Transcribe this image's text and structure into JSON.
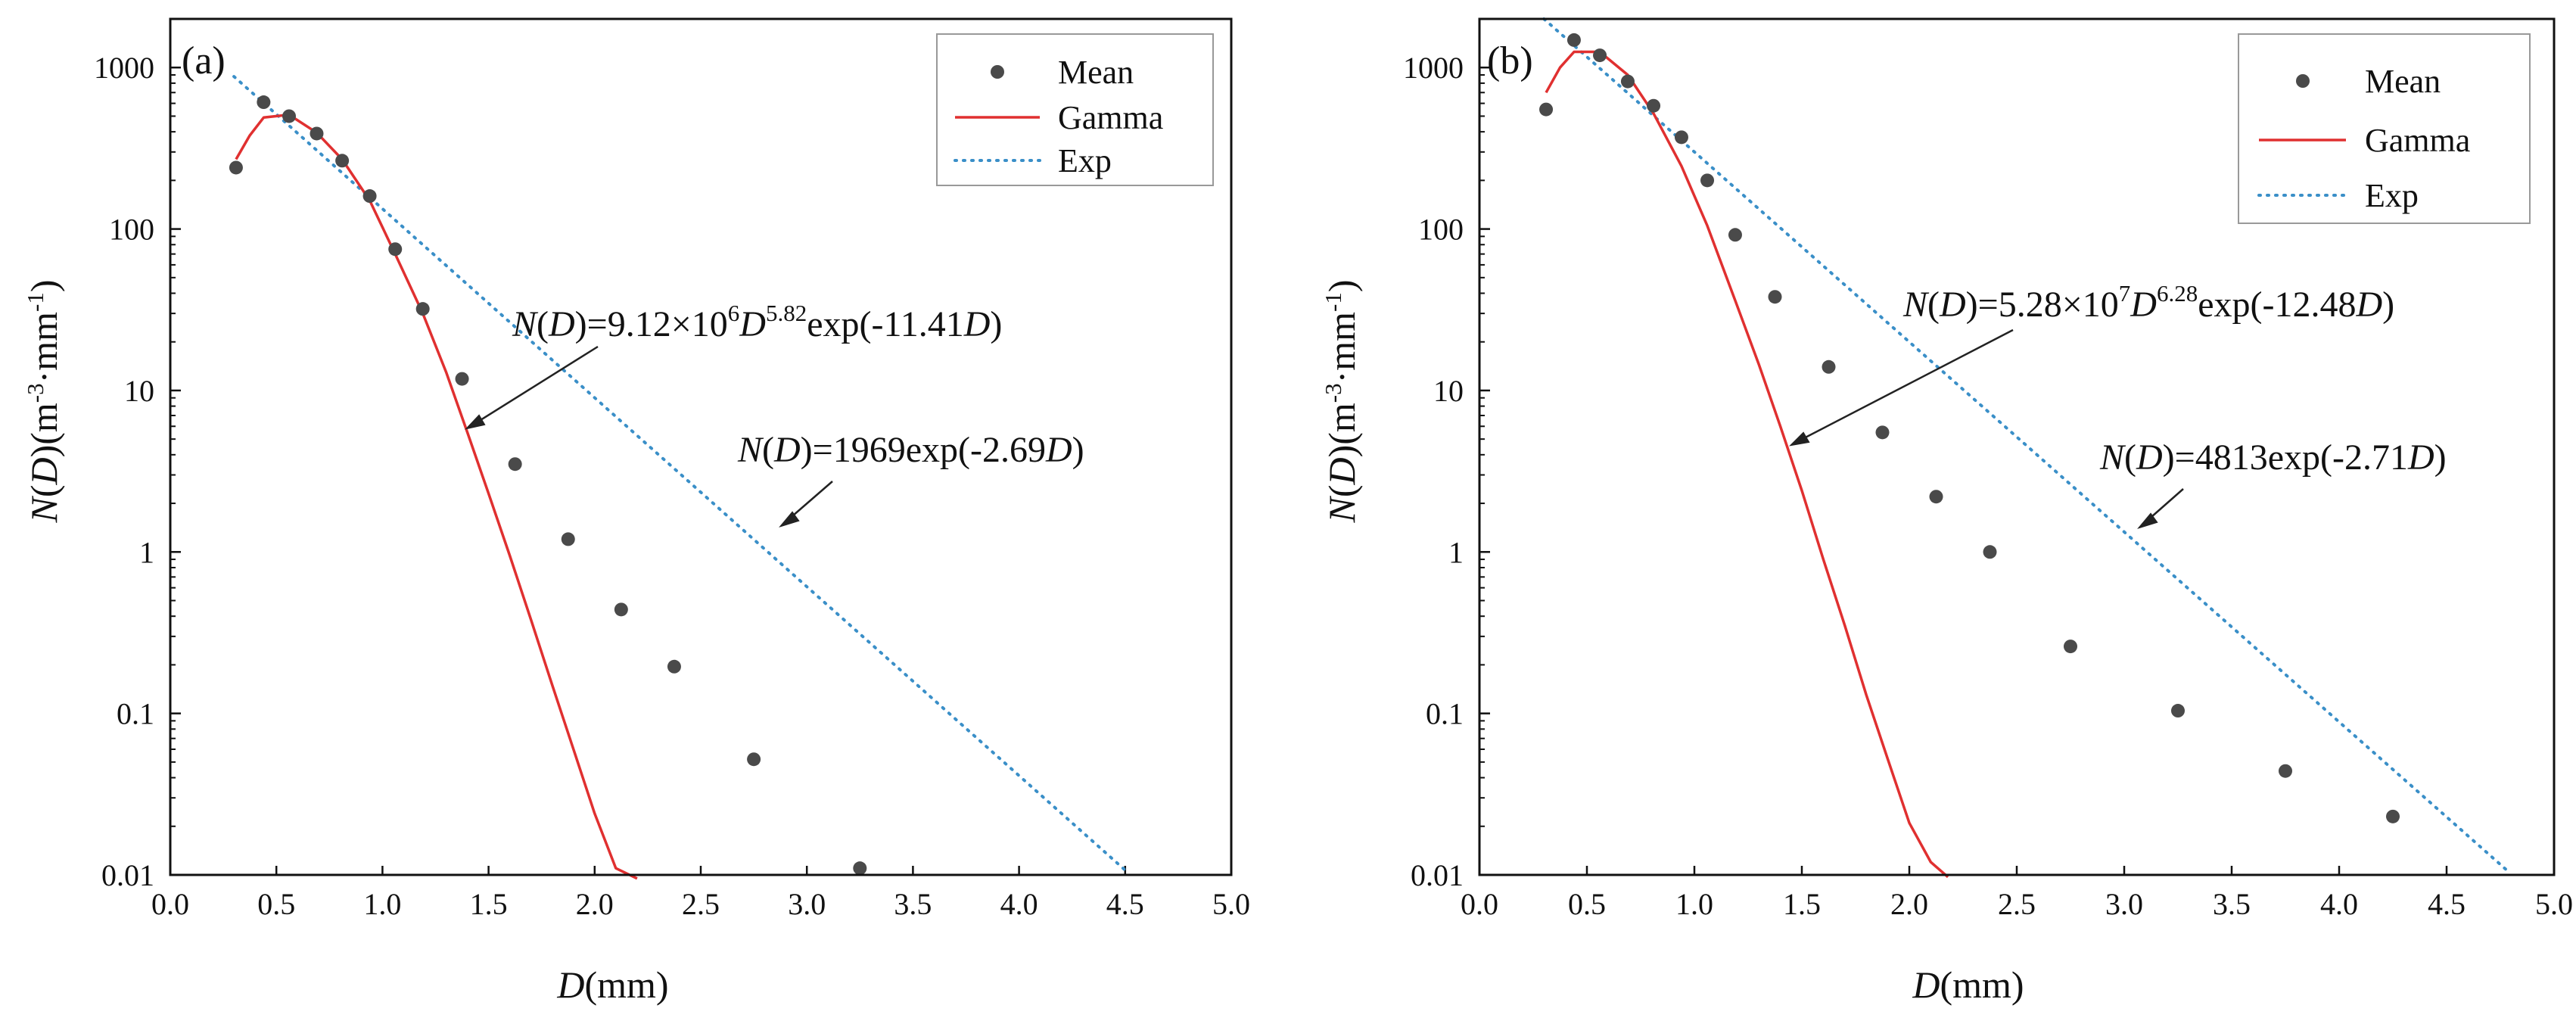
{
  "figure": {
    "styles": {
      "mean_color": "#4a4a4a",
      "gamma_color": "#e03030",
      "exp_color": "#3a8fc8",
      "axis_color": "#111111",
      "arrow_color": "#222222"
    }
  },
  "chart_data": [
    {
      "type": "scatter",
      "panel_label": "(a)",
      "xlabel": "D(mm)",
      "ylabel": "N(D)(m-3·mm-1)",
      "x_scale": "linear",
      "y_scale": "log",
      "xlim": [
        0.0,
        5.0
      ],
      "ylim": [
        0.01,
        2000
      ],
      "x_ticks": [
        0.0,
        0.5,
        1.0,
        1.5,
        2.0,
        2.5,
        3.0,
        3.5,
        4.0,
        4.5,
        5.0
      ],
      "x_tick_labels": [
        "0.0",
        "0.5",
        "1.0",
        "1.5",
        "2.0",
        "2.5",
        "3.0",
        "3.5",
        "4.0",
        "4.5",
        "5.0"
      ],
      "y_ticks": [
        0.01,
        0.1,
        1,
        10,
        100,
        1000
      ],
      "y_tick_labels": [
        "0.01",
        "0.1",
        "1",
        "10",
        "100",
        "1000"
      ],
      "legend": {
        "position": "top-right",
        "entries": [
          "Mean",
          "Gamma",
          "Exp"
        ]
      },
      "series": [
        {
          "name": "Mean",
          "kind": "points",
          "x": [
            0.31,
            0.44,
            0.56,
            0.69,
            0.81,
            0.94,
            1.06,
            1.19,
            1.375,
            1.625,
            1.875,
            2.125,
            2.375,
            2.75,
            3.25
          ],
          "y": [
            240,
            610,
            500,
            390,
            265,
            160,
            75,
            32,
            11.8,
            3.5,
            1.2,
            0.44,
            0.195,
            0.052,
            0.011
          ]
        },
        {
          "name": "Gamma",
          "kind": "line",
          "x": [
            0.31,
            0.375,
            0.44,
            0.56,
            0.69,
            0.81,
            0.94,
            1.06,
            1.19,
            1.3,
            1.4,
            1.5,
            1.6,
            1.7,
            1.8,
            1.9,
            2.0,
            2.1,
            2.2
          ],
          "y": [
            270,
            380,
            490,
            510,
            395,
            270,
            150,
            70,
            30,
            13,
            5.5,
            2.3,
            0.95,
            0.38,
            0.15,
            0.06,
            0.024,
            0.011,
            0.0095
          ]
        },
        {
          "name": "Exp",
          "kind": "dotted-line",
          "x": [
            0.3,
            4.5
          ],
          "y": [
            880,
            0.0107
          ]
        }
      ],
      "annotations": [
        {
          "parts": [
            "N",
            "(",
            "D",
            ")=9.12×10",
            "6",
            "D",
            "5.82",
            "exp(-11.41",
            "D",
            ")"
          ],
          "x": 1.4,
          "y": 9
        },
        {
          "parts": [
            "N",
            "(",
            "D",
            ")=1969exp(-2.69",
            "D",
            ")"
          ],
          "x": 3.23,
          "y": 1.28
        }
      ]
    },
    {
      "type": "scatter",
      "panel_label": "(b)",
      "xlabel": "D(mm)",
      "ylabel": "N(D)(m-3·mm-1)",
      "x_scale": "linear",
      "y_scale": "log",
      "xlim": [
        0.0,
        5.0
      ],
      "ylim": [
        0.01,
        2000
      ],
      "x_ticks": [
        0.0,
        0.5,
        1.0,
        1.5,
        2.0,
        2.5,
        3.0,
        3.5,
        4.0,
        4.5,
        5.0
      ],
      "x_tick_labels": [
        "0.0",
        "0.5",
        "1.0",
        "1.5",
        "2.0",
        "2.5",
        "3.0",
        "3.5",
        "4.0",
        "4.5",
        "5.0"
      ],
      "y_ticks": [
        0.01,
        0.1,
        1,
        10,
        100,
        1000
      ],
      "y_tick_labels": [
        "0.01",
        "0.1",
        "1",
        "10",
        "100",
        "1000"
      ],
      "legend": {
        "position": "top-right",
        "entries": [
          "Mean",
          "Gamma",
          "Exp"
        ]
      },
      "series": [
        {
          "name": "Mean",
          "kind": "points",
          "x": [
            0.31,
            0.44,
            0.56,
            0.69,
            0.81,
            0.94,
            1.06,
            1.19,
            1.375,
            1.625,
            1.875,
            2.125,
            2.375,
            2.75,
            3.25,
            3.75,
            4.25
          ],
          "y": [
            550,
            1480,
            1190,
            820,
            580,
            370,
            200,
            92,
            38,
            14,
            5.5,
            2.2,
            1.0,
            0.26,
            0.104,
            0.044,
            0.023
          ]
        },
        {
          "name": "Gamma",
          "kind": "line",
          "x": [
            0.31,
            0.375,
            0.44,
            0.56,
            0.69,
            0.81,
            0.94,
            1.06,
            1.19,
            1.3,
            1.4,
            1.5,
            1.6,
            1.7,
            1.8,
            1.9,
            2.0,
            2.1,
            2.18
          ],
          "y": [
            700,
            1000,
            1250,
            1250,
            900,
            520,
            245,
            105,
            36,
            14.5,
            6,
            2.4,
            0.9,
            0.35,
            0.13,
            0.052,
            0.021,
            0.012,
            0.0097
          ]
        },
        {
          "name": "Exp",
          "kind": "dotted-line",
          "x": [
            0.3,
            4.78
          ],
          "y": [
            2000,
            0.0107
          ]
        }
      ],
      "annotations": [
        {
          "parts": [
            "N",
            "(",
            "D",
            ")=5.28×10",
            "7",
            "D",
            "6.28",
            "exp(-12.48",
            "D",
            ")"
          ],
          "x": 1.45,
          "y": 5
        },
        {
          "parts": [
            "N",
            "(",
            "D",
            ")=4813exp(-2.71",
            "D",
            ")"
          ],
          "x": 3.25,
          "y": 0.8
        }
      ]
    }
  ]
}
